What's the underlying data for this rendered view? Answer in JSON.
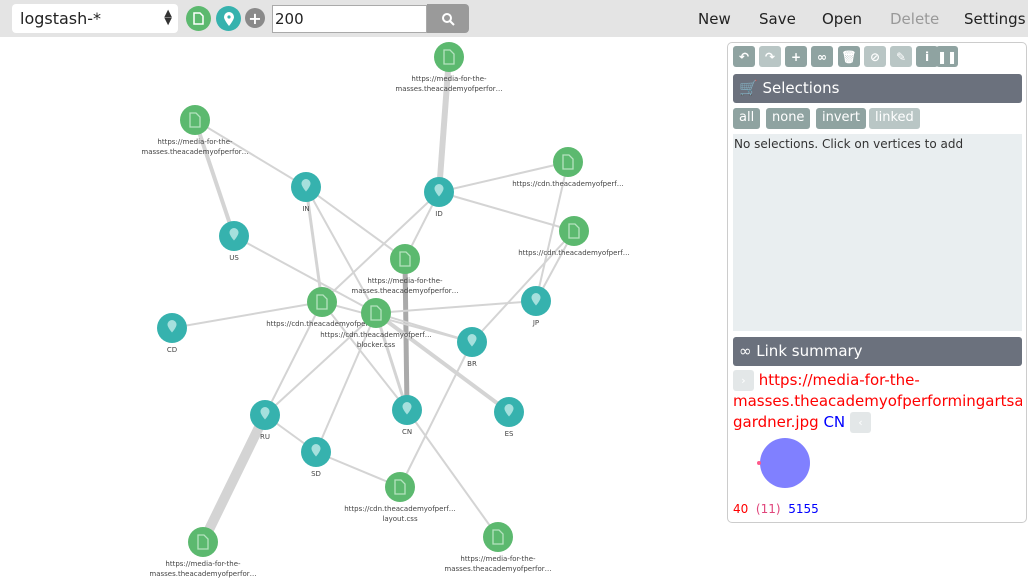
{
  "toolbar": {
    "index_pattern": "logstash-*",
    "query": "200",
    "menu": [
      "New",
      "Save",
      "Open",
      "Delete",
      "Settings"
    ],
    "disabled": [
      "Delete"
    ],
    "field_icons": [
      "document-icon",
      "map-marker-icon",
      "plus-icon"
    ]
  },
  "panel": {
    "tools": [
      "undo-icon",
      "redo-icon",
      "expand-icon",
      "link-icon",
      "delete-icon",
      "block-icon",
      "style-icon",
      "info-icon",
      "pause-icon"
    ],
    "selections": {
      "title": "Selections",
      "buttons": [
        "all",
        "none",
        "invert",
        "linked"
      ],
      "empty_text": "No selections. Click on vertices to add"
    },
    "link_summary": {
      "title": "Link summary",
      "source": "https://media-for-the-",
      "source_line2": "masses.theacademyofperformingartsandscience.com/",
      "source_line3": "gardner.jpg",
      "target": "CN",
      "count_a": "40",
      "count_both": "(11)",
      "count_b": "5155"
    }
  },
  "colors": {
    "doc": "#5cb96f",
    "geo": "#36b2ae",
    "edge": "#d4d4d4",
    "source": "#ff0000",
    "target": "#0000ff",
    "overlap": "#e0457b"
  },
  "graph": {
    "nodes": [
      {
        "id": "d1",
        "type": "doc",
        "label": [
          "https://media-for-the-",
          "masses.theacademyofperfor…"
        ]
      },
      {
        "id": "d2",
        "type": "doc",
        "label": [
          "https://media-for-the-",
          "masses.theacademyofperfor…"
        ]
      },
      {
        "id": "d3",
        "type": "doc",
        "label": [
          "https://cdn.theacademyofperf…"
        ]
      },
      {
        "id": "d4",
        "type": "doc",
        "label": [
          "https://cdn.theacademyofperf…"
        ]
      },
      {
        "id": "d5",
        "type": "doc",
        "label": [
          "https://media-for-the-",
          "masses.theacademyofperfor…"
        ]
      },
      {
        "id": "d6",
        "type": "doc",
        "label": [
          "https://cdn.theacademyofperf…"
        ]
      },
      {
        "id": "d7",
        "type": "doc",
        "label": [
          "https://cdn.theacademyofperf…",
          "blocker.css"
        ]
      },
      {
        "id": "d8",
        "type": "doc",
        "label": [
          "https://cdn.theacademyofperf…",
          "layout.css"
        ]
      },
      {
        "id": "d9",
        "type": "doc",
        "label": [
          "https://media-for-the-",
          "masses.theacademyofperfor…"
        ]
      },
      {
        "id": "d10",
        "type": "doc",
        "label": [
          "https://media-for-the-",
          "masses.theacademyofperfor…"
        ]
      },
      {
        "id": "IN",
        "type": "geo",
        "label": [
          "IN"
        ]
      },
      {
        "id": "ID",
        "type": "geo",
        "label": [
          "ID"
        ]
      },
      {
        "id": "US",
        "type": "geo",
        "label": [
          "US"
        ]
      },
      {
        "id": "JP",
        "type": "geo",
        "label": [
          "JP"
        ]
      },
      {
        "id": "CD",
        "type": "geo",
        "label": [
          "CD"
        ]
      },
      {
        "id": "BR",
        "type": "geo",
        "label": [
          "BR"
        ]
      },
      {
        "id": "RU",
        "type": "geo",
        "label": [
          "RU"
        ]
      },
      {
        "id": "CN",
        "type": "geo",
        "label": [
          "CN"
        ]
      },
      {
        "id": "ES",
        "type": "geo",
        "label": [
          "ES"
        ]
      },
      {
        "id": "SD",
        "type": "geo",
        "label": [
          "SD"
        ]
      }
    ],
    "edges": [
      [
        "d1",
        "ID"
      ],
      [
        "d2",
        "US"
      ],
      [
        "d2",
        "IN"
      ],
      [
        "ID",
        "d3"
      ],
      [
        "ID",
        "d4"
      ],
      [
        "ID",
        "d5"
      ],
      [
        "ID",
        "d6"
      ],
      [
        "IN",
        "d6"
      ],
      [
        "IN",
        "d7"
      ],
      [
        "IN",
        "d5"
      ],
      [
        "US",
        "d7"
      ],
      [
        "d3",
        "JP"
      ],
      [
        "d4",
        "JP"
      ],
      [
        "d4",
        "BR"
      ],
      [
        "d5",
        "CN"
      ],
      [
        "d6",
        "CD"
      ],
      [
        "d6",
        "BR"
      ],
      [
        "d6",
        "RU"
      ],
      [
        "d6",
        "CN"
      ],
      [
        "d7",
        "JP"
      ],
      [
        "d7",
        "BR"
      ],
      [
        "d7",
        "ES"
      ],
      [
        "d7",
        "CN"
      ],
      [
        "d7",
        "SD"
      ],
      [
        "d7",
        "RU"
      ],
      [
        "RU",
        "SD"
      ],
      [
        "RU",
        "d9"
      ],
      [
        "SD",
        "d8"
      ],
      [
        "d8",
        "BR"
      ],
      [
        "CN",
        "d10"
      ]
    ]
  }
}
